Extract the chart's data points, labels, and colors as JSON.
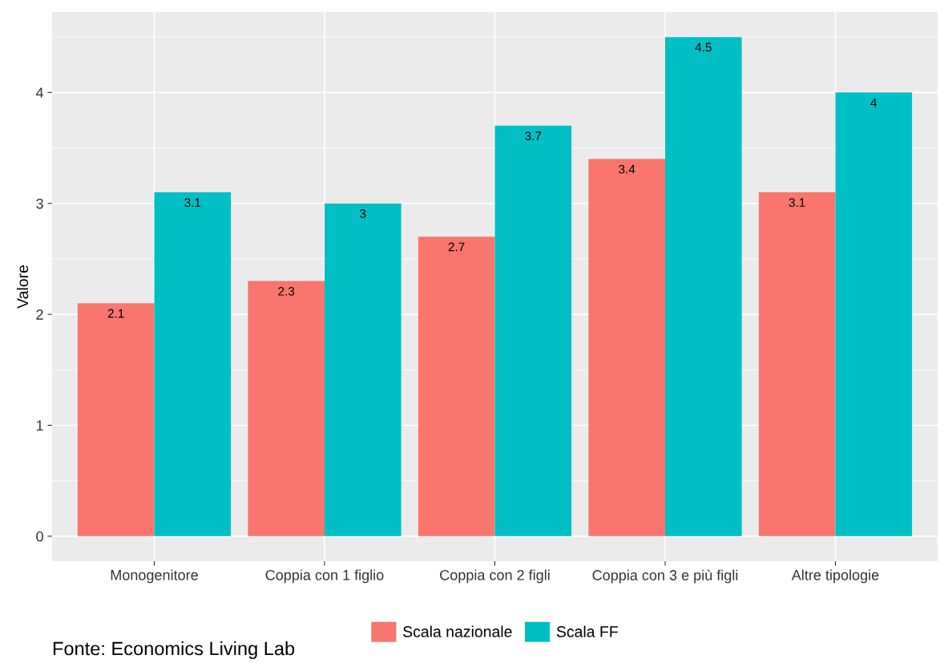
{
  "chart_data": {
    "type": "bar",
    "ylabel": "Valore",
    "categories": [
      "Monogenitore",
      "Coppia con 1 figlio",
      "Coppia con 2 figli",
      "Coppia con 3 e più figli",
      "Altre tipologie"
    ],
    "series": [
      {
        "name": "Scala nazionale",
        "color": "#f8766d",
        "values": [
          2.1,
          2.3,
          2.7,
          3.4,
          3.1
        ]
      },
      {
        "name": "Scala FF",
        "color": "#00bfc4",
        "values": [
          3.1,
          3.0,
          3.7,
          4.5,
          4.0
        ]
      }
    ],
    "ylim": [
      -0.225,
      4.725
    ],
    "yticks": [
      0,
      1,
      2,
      3,
      4
    ],
    "grid": true,
    "legend": "bottom",
    "data_labels": true,
    "annotations": [
      "Fonte: Economics Living Lab"
    ]
  }
}
